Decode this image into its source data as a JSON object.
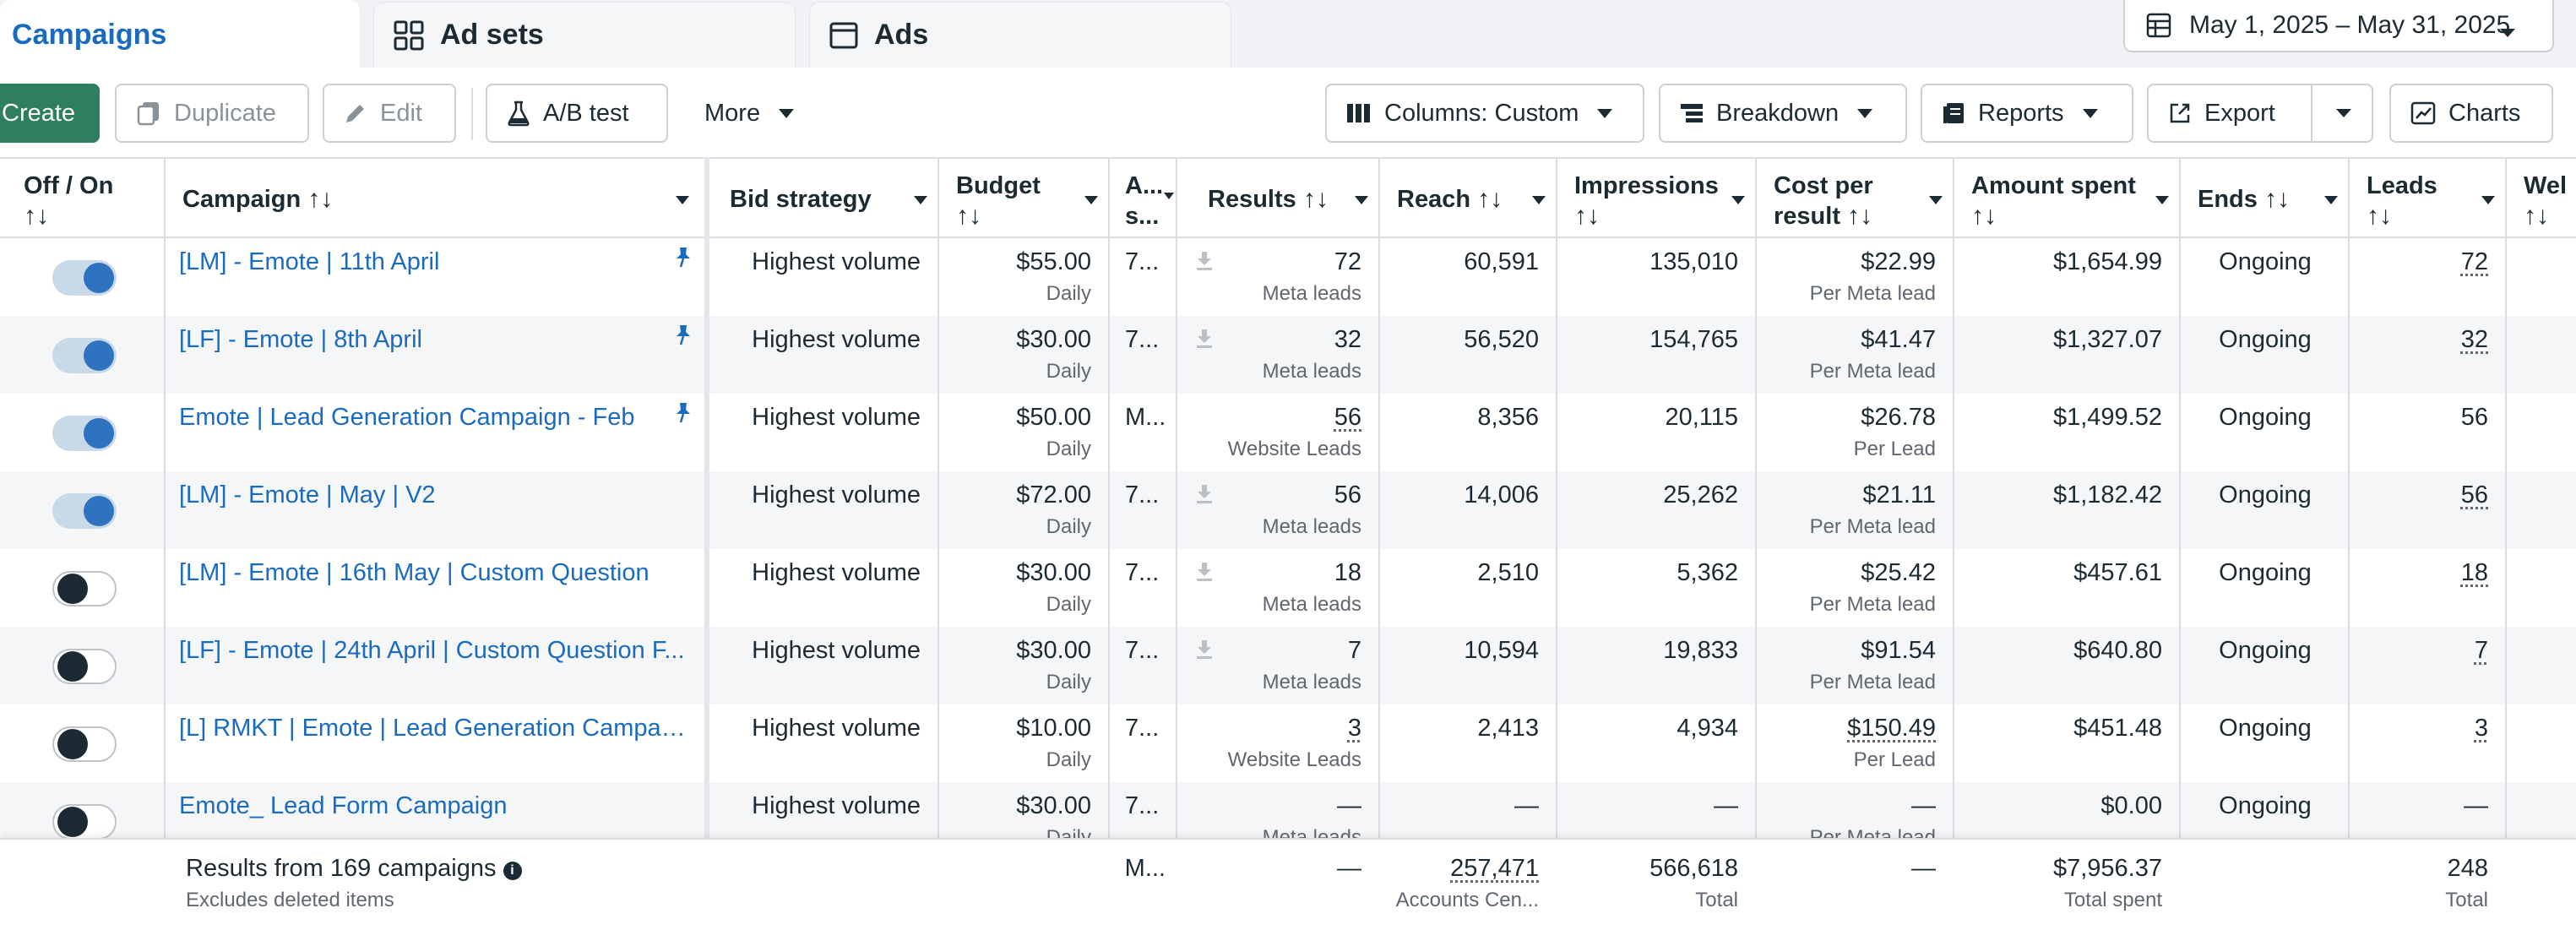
{
  "tabs": {
    "campaigns": "Campaigns",
    "adsets": "Ad sets",
    "ads": "Ads"
  },
  "date_range": "May 1, 2025 – May 31, 2025",
  "toolbar": {
    "create": "Create",
    "duplicate": "Duplicate",
    "edit": "Edit",
    "abtest": "A/B test",
    "more": "More",
    "columns": "Columns: Custom",
    "breakdown": "Breakdown",
    "reports": "Reports",
    "export": "Export",
    "charts": "Charts"
  },
  "headers": {
    "offon": "Off / On",
    "campaign": "Campaign",
    "bid": "Bid strategy",
    "budget": "Budget",
    "attr1": "A...",
    "attr2": "s...",
    "results": "Results",
    "reach": "Reach",
    "impressions": "Impressions",
    "cpr1": "Cost per",
    "cpr2": "result",
    "spent": "Amount spent",
    "ends": "Ends",
    "leads": "Leads",
    "web": "Wel",
    "sort": "↑↓"
  },
  "rows": [
    {
      "on": true,
      "name": "[LM] - Emote | 11th April",
      "pinned": true,
      "bid": "Highest volume",
      "budget": "$55.00",
      "budget_type": "Daily",
      "attr": "7...",
      "dl": true,
      "results": "72",
      "results_type": "Meta leads",
      "results_dotted": false,
      "reach": "60,591",
      "impressions": "135,010",
      "cpr": "$22.99",
      "cpr_type": "Per Meta lead",
      "cpr_dotted": false,
      "spent": "$1,654.99",
      "ends": "Ongoing",
      "leads": "72",
      "leads_dotted": true
    },
    {
      "on": true,
      "name": "[LF] - Emote | 8th April",
      "pinned": true,
      "bid": "Highest volume",
      "budget": "$30.00",
      "budget_type": "Daily",
      "attr": "7...",
      "dl": true,
      "results": "32",
      "results_type": "Meta leads",
      "results_dotted": false,
      "reach": "56,520",
      "impressions": "154,765",
      "cpr": "$41.47",
      "cpr_type": "Per Meta lead",
      "cpr_dotted": false,
      "spent": "$1,327.07",
      "ends": "Ongoing",
      "leads": "32",
      "leads_dotted": true
    },
    {
      "on": true,
      "name": "Emote | Lead Generation Campaign - Feb",
      "pinned": true,
      "bid": "Highest volume",
      "budget": "$50.00",
      "budget_type": "Daily",
      "attr": "M...",
      "dl": false,
      "results": "56",
      "results_type": "Website Leads",
      "results_dotted": true,
      "reach": "8,356",
      "impressions": "20,115",
      "cpr": "$26.78",
      "cpr_type": "Per Lead",
      "cpr_dotted": false,
      "spent": "$1,499.52",
      "ends": "Ongoing",
      "leads": "56",
      "leads_dotted": false
    },
    {
      "on": true,
      "name": "[LM] - Emote | May | V2",
      "pinned": false,
      "bid": "Highest volume",
      "budget": "$72.00",
      "budget_type": "Daily",
      "attr": "7...",
      "dl": true,
      "results": "56",
      "results_type": "Meta leads",
      "results_dotted": false,
      "reach": "14,006",
      "impressions": "25,262",
      "cpr": "$21.11",
      "cpr_type": "Per Meta lead",
      "cpr_dotted": false,
      "spent": "$1,182.42",
      "ends": "Ongoing",
      "leads": "56",
      "leads_dotted": true
    },
    {
      "on": false,
      "name": "[LM] - Emote | 16th May | Custom Question",
      "pinned": false,
      "bid": "Highest volume",
      "budget": "$30.00",
      "budget_type": "Daily",
      "attr": "7...",
      "dl": true,
      "results": "18",
      "results_type": "Meta leads",
      "results_dotted": false,
      "reach": "2,510",
      "impressions": "5,362",
      "cpr": "$25.42",
      "cpr_type": "Per Meta lead",
      "cpr_dotted": false,
      "spent": "$457.61",
      "ends": "Ongoing",
      "leads": "18",
      "leads_dotted": true
    },
    {
      "on": false,
      "name": "[LF] - Emote | 24th April | Custom Question F...",
      "pinned": false,
      "bid": "Highest volume",
      "budget": "$30.00",
      "budget_type": "Daily",
      "attr": "7...",
      "dl": true,
      "results": "7",
      "results_type": "Meta leads",
      "results_dotted": false,
      "reach": "10,594",
      "impressions": "19,833",
      "cpr": "$91.54",
      "cpr_type": "Per Meta lead",
      "cpr_dotted": false,
      "spent": "$640.80",
      "ends": "Ongoing",
      "leads": "7",
      "leads_dotted": true
    },
    {
      "on": false,
      "name": "[L] RMKT | Emote | Lead Generation Campai...",
      "pinned": false,
      "bid": "Highest volume",
      "budget": "$10.00",
      "budget_type": "Daily",
      "attr": "7...",
      "dl": false,
      "results": "3",
      "results_type": "Website Leads",
      "results_dotted": true,
      "reach": "2,413",
      "impressions": "4,934",
      "cpr": "$150.49",
      "cpr_type": "Per Lead",
      "cpr_dotted": true,
      "spent": "$451.48",
      "ends": "Ongoing",
      "leads": "3",
      "leads_dotted": true
    },
    {
      "on": false,
      "name": "Emote_ Lead Form Campaign",
      "pinned": false,
      "bid": "Highest volume",
      "budget": "$30.00",
      "budget_type": "Daily",
      "attr": "7...",
      "dl": false,
      "results": "—",
      "results_type": "Meta leads",
      "results_dotted": false,
      "reach": "—",
      "impressions": "—",
      "cpr": "—",
      "cpr_type": "Per Meta lead",
      "cpr_dotted": false,
      "spent": "$0.00",
      "ends": "Ongoing",
      "leads": "—",
      "leads_dotted": false
    }
  ],
  "footer": {
    "title": "Results from 169 campaigns",
    "info": "i",
    "subtitle": "Excludes deleted items",
    "attr": "M...",
    "results": "—",
    "reach": "257,471",
    "reach_sub": "Accounts Cen...",
    "impressions": "566,618",
    "impressions_sub": "Total",
    "cpr": "—",
    "spent": "$7,956.37",
    "spent_sub": "Total spent",
    "leads": "248",
    "leads_sub": "Total"
  },
  "colors": {
    "link": "#1a6bbf",
    "create_button": "#2d7f5e",
    "toggle_on": "#2f72c0"
  }
}
